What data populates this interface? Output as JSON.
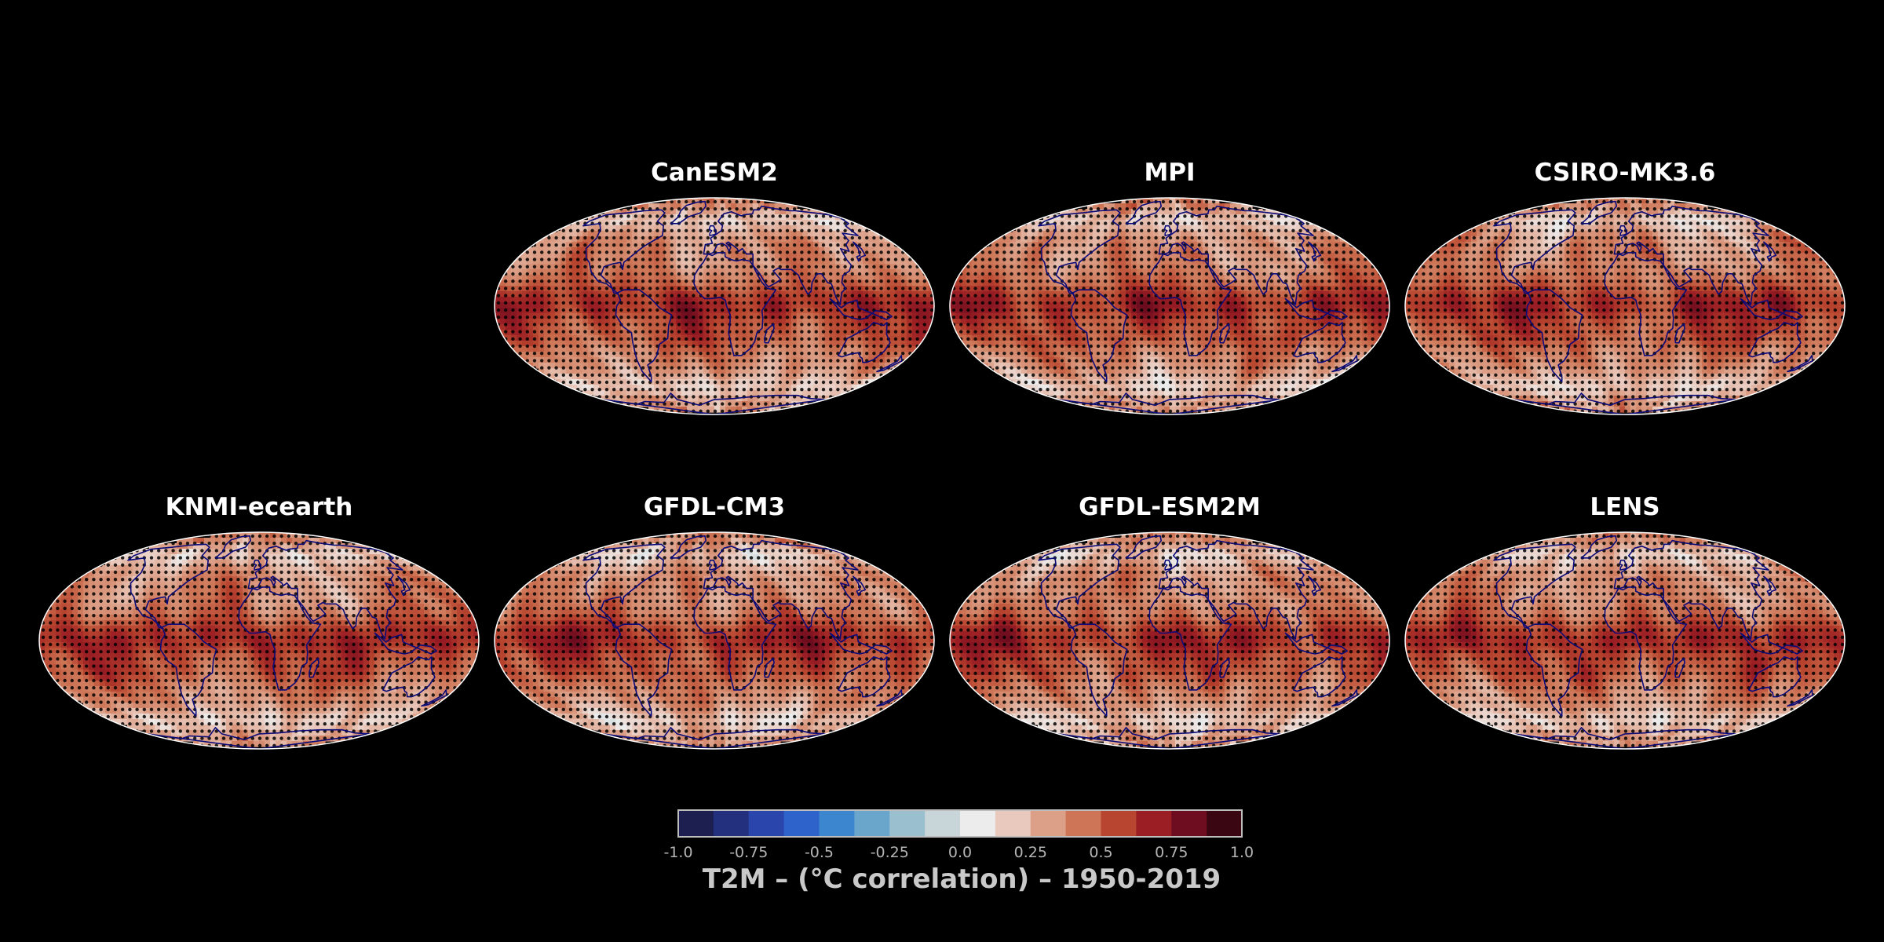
{
  "panels": [
    {
      "id": "canesm2",
      "title": "CanESM2",
      "seed": 3
    },
    {
      "id": "mpi",
      "title": "MPI",
      "seed": 7
    },
    {
      "id": "csiro",
      "title": "CSIRO-MK3.6",
      "seed": 11
    },
    {
      "id": "knmi",
      "title": "KNMI-ecearth",
      "seed": 13
    },
    {
      "id": "gfdl-cm3",
      "title": "GFDL-CM3",
      "seed": 17
    },
    {
      "id": "gfdl-esm2m",
      "title": "GFDL-ESM2M",
      "seed": 19
    },
    {
      "id": "lens",
      "title": "LENS",
      "seed": 23
    }
  ],
  "colorbar": {
    "min": -1.0,
    "max": 1.0,
    "ticks": [
      "-1.0",
      "-0.75",
      "-0.5",
      "-0.25",
      "0.0",
      "0.25",
      "0.5",
      "0.75",
      "1.0"
    ],
    "caption": "T2M – (°C correlation) – 1950-2019",
    "colors": [
      "#1c1f4f",
      "#22307e",
      "#2a45ac",
      "#2f63cc",
      "#3c86cf",
      "#6aa6cc",
      "#9ac0cf",
      "#c8d6d9",
      "#ececec",
      "#e9c9bd",
      "#dc9f87",
      "#cd7556",
      "#b8452f",
      "#9b1e24",
      "#6e0d1f",
      "#3a0612"
    ]
  },
  "colors": {
    "background": "#000000",
    "coastline": "#0a0a78",
    "stipple": "#000000",
    "title": "#ffffff",
    "caption": "#c9c9c9"
  }
}
